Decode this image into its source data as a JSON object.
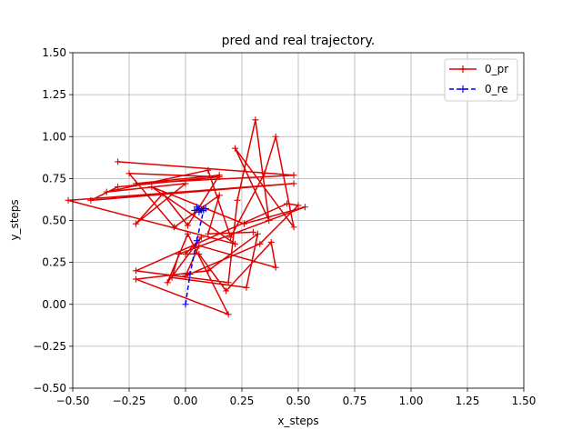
{
  "chart_data": {
    "type": "line",
    "title": "pred and real trajectory.",
    "xlabel": "x_steps",
    "ylabel": "y_steps",
    "xlim": [
      -0.5,
      1.5
    ],
    "ylim": [
      -0.5,
      1.5
    ],
    "xticks": [
      "−0.50",
      "−0.25",
      "0.00",
      "0.25",
      "0.50",
      "0.75",
      "1.00",
      "1.25",
      "1.50"
    ],
    "yticks": [
      "−0.50",
      "−0.25",
      "0.00",
      "0.25",
      "0.50",
      "0.75",
      "1.00",
      "1.25",
      "1.50"
    ],
    "xtick_values": [
      -0.5,
      -0.25,
      0,
      0.25,
      0.5,
      0.75,
      1.0,
      1.25,
      1.5
    ],
    "ytick_values": [
      -0.5,
      -0.25,
      0,
      0.25,
      0.5,
      0.75,
      1.0,
      1.25,
      1.5
    ],
    "grid": true,
    "legend_position": "top-right",
    "series": [
      {
        "name": "0_pr",
        "color": "#e00000",
        "linestyle": "solid",
        "marker": "+",
        "points": [
          [
            -0.3,
            0.85
          ],
          [
            0.48,
            0.77
          ],
          [
            -0.22,
            0.72
          ],
          [
            0.15,
            0.77
          ],
          [
            0.01,
            0.47
          ],
          [
            -0.1,
            0.66
          ],
          [
            -0.22,
            0.48
          ],
          [
            0.0,
            0.72
          ],
          [
            -0.35,
            0.67
          ],
          [
            0.1,
            0.8
          ],
          [
            0.2,
            0.4
          ],
          [
            0.35,
            0.78
          ],
          [
            0.4,
            1.0
          ],
          [
            0.48,
            0.46
          ],
          [
            0.22,
            0.93
          ],
          [
            0.37,
            0.5
          ],
          [
            0.31,
            1.1
          ],
          [
            0.23,
            0.62
          ],
          [
            0.19,
            0.13
          ],
          [
            -0.22,
            0.2
          ],
          [
            0.45,
            0.6
          ],
          [
            0.5,
            0.59
          ],
          [
            0.33,
            0.36
          ],
          [
            0.0,
            0.17
          ],
          [
            0.06,
            0.35
          ],
          [
            0.4,
            0.22
          ],
          [
            0.38,
            0.37
          ],
          [
            0.18,
            0.08
          ],
          [
            0.06,
            0.3
          ],
          [
            0.0,
            0.3
          ],
          [
            0.07,
            0.4
          ],
          [
            -0.08,
            0.13
          ],
          [
            0.01,
            0.42
          ],
          [
            0.19,
            -0.06
          ],
          [
            -0.22,
            0.15
          ],
          [
            0.1,
            0.2
          ],
          [
            0.32,
            0.42
          ],
          [
            0.27,
            0.1
          ],
          [
            -0.06,
            0.16
          ],
          [
            -0.03,
            0.3
          ],
          [
            0.53,
            0.58
          ],
          [
            0.26,
            0.48
          ],
          [
            -0.15,
            0.7
          ],
          [
            0.22,
            0.36
          ],
          [
            -0.52,
            0.62
          ],
          [
            0.48,
            0.72
          ],
          [
            -0.42,
            0.62
          ],
          [
            -0.3,
            0.7
          ],
          [
            0.15,
            0.76
          ],
          [
            -0.25,
            0.78
          ],
          [
            -0.05,
            0.46
          ],
          [
            0.15,
            0.65
          ],
          [
            0.1,
            0.42
          ],
          [
            0.3,
            0.43
          ]
        ]
      },
      {
        "name": "0_re",
        "color": "#0000ee",
        "linestyle": "dashed",
        "marker": "+",
        "points": [
          [
            0.0,
            0.0
          ],
          [
            0.02,
            0.18
          ],
          [
            0.05,
            0.38
          ],
          [
            0.08,
            0.56
          ],
          [
            0.06,
            0.57
          ],
          [
            0.04,
            0.56
          ],
          [
            0.07,
            0.56
          ],
          [
            0.05,
            0.58
          ],
          [
            0.08,
            0.57
          ],
          [
            0.06,
            0.55
          ],
          [
            0.09,
            0.57
          ]
        ]
      }
    ]
  }
}
